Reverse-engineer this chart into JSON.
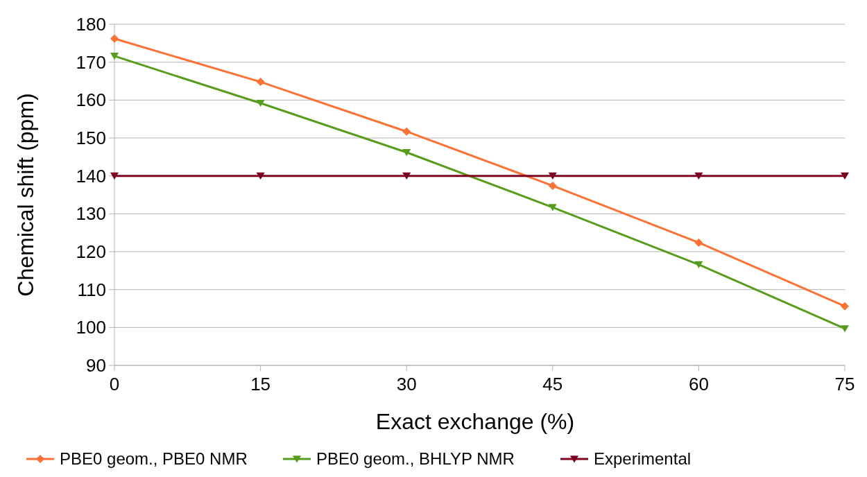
{
  "chart_data": {
    "type": "line",
    "xlabel": "Exact exchange (%)",
    "ylabel": "Chemical shift (ppm)",
    "x": [
      0,
      15,
      30,
      45,
      60,
      75
    ],
    "xlim": [
      0,
      75
    ],
    "xticks": [
      0,
      15,
      30,
      45,
      60,
      75
    ],
    "ylim": [
      90,
      180
    ],
    "yticks": [
      90,
      100,
      110,
      120,
      130,
      140,
      150,
      160,
      170,
      180
    ],
    "grid": "y",
    "legend": "bottom",
    "series": [
      {
        "name": "PBE0 geom., PBE0 NMR",
        "color": "#ff7033",
        "marker": "diamond",
        "values": [
          176.2,
          164.8,
          151.7,
          137.4,
          122.4,
          105.6
        ]
      },
      {
        "name": "PBE0 geom., BHLYP NMR",
        "color": "#579d1c",
        "marker": "triangle",
        "values": [
          171.6,
          159.2,
          146.2,
          131.7,
          116.6,
          99.7
        ]
      },
      {
        "name": "Experimental",
        "color": "#7e0021",
        "marker": "triangle",
        "values": [
          140,
          140,
          140,
          140,
          140,
          140
        ]
      }
    ]
  }
}
